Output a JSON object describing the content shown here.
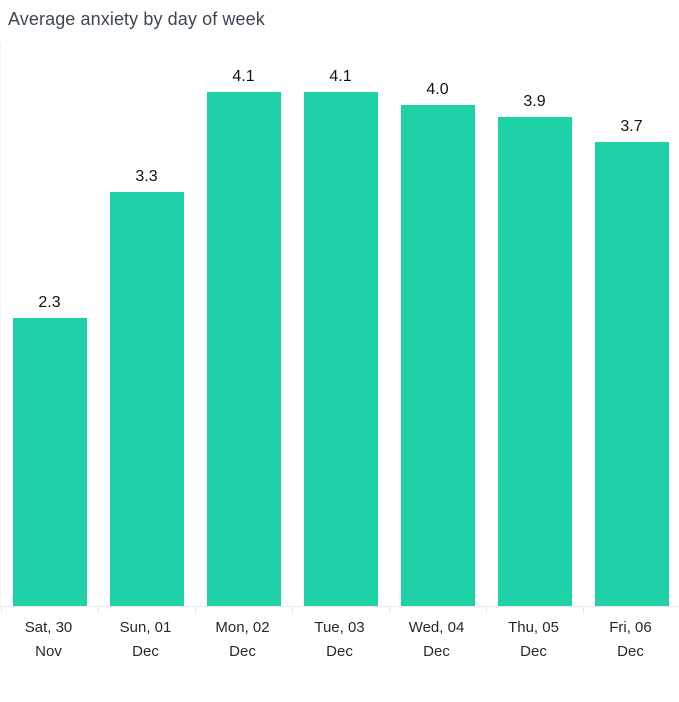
{
  "chart": {
    "title": "Average anxiety by day of week"
  },
  "chart_data": {
    "type": "bar",
    "title": "Average anxiety by day of week",
    "categories": [
      "Sat, 30 Nov",
      "Sun, 01 Dec",
      "Mon, 02 Dec",
      "Tue, 03 Dec",
      "Wed, 04 Dec",
      "Thu, 05 Dec",
      "Fri, 06 Dec"
    ],
    "category_label_lines": [
      [
        "Sat, 30",
        "Nov"
      ],
      [
        "Sun, 01",
        "Dec"
      ],
      [
        "Mon, 02",
        "Dec"
      ],
      [
        "Tue, 03",
        "Dec"
      ],
      [
        "Wed, 04",
        "Dec"
      ],
      [
        "Thu, 05",
        "Dec"
      ],
      [
        "Fri, 06",
        "Dec"
      ]
    ],
    "values": [
      2.3,
      3.3,
      4.1,
      4.1,
      4.0,
      3.9,
      3.7
    ],
    "data_labels": [
      "2.3",
      "3.3",
      "4.1",
      "4.1",
      "4.0",
      "3.9",
      "3.7"
    ],
    "xlabel": "",
    "ylabel": "",
    "ylim": [
      0,
      4.5
    ],
    "grid": false,
    "legend": false,
    "bar_color": "#1fd1a6",
    "axis_line_color": "#ececec",
    "tick_color": "#e6e6e6",
    "data_label_color": "#111111",
    "axis_label_color": "#24292e",
    "title_color": "#3d4752"
  }
}
